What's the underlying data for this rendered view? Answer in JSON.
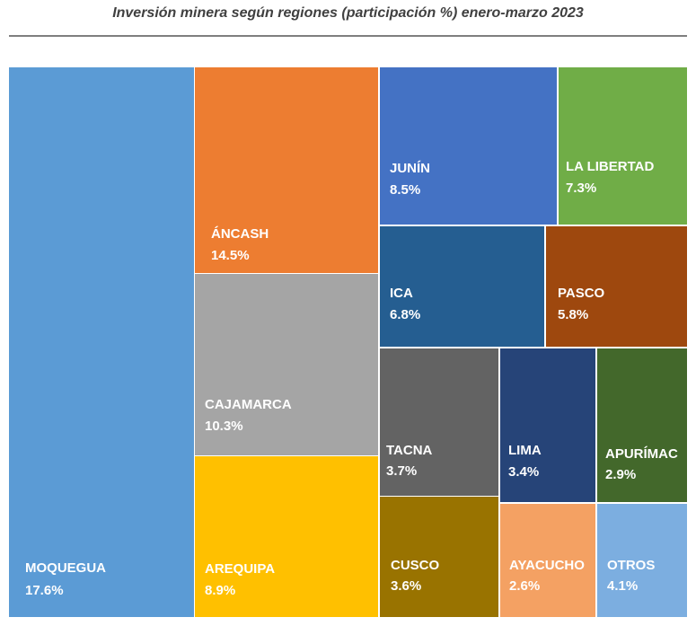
{
  "chart_data": {
    "type": "treemap",
    "title": "Inversión minera según regiones (participación %) enero-marzo 2023",
    "cells": [
      {
        "name": "MOQUEGUA",
        "label": "17.6%",
        "value": 17.6,
        "color": "#5b9bd5"
      },
      {
        "name": "ÁNCASH",
        "label": "14.5%",
        "value": 14.5,
        "color": "#ed7d31"
      },
      {
        "name": "CAJAMARCA",
        "label": "10.3%",
        "value": 10.3,
        "color": "#a5a5a5"
      },
      {
        "name": "AREQUIPA",
        "label": "8.9%",
        "value": 8.9,
        "color": "#ffc000"
      },
      {
        "name": "JUNÍN",
        "label": "8.5%",
        "value": 8.5,
        "color": "#4472c4"
      },
      {
        "name": "LA LIBERTAD",
        "label": "7.3%",
        "value": 7.3,
        "color": "#70ad47"
      },
      {
        "name": "ICA",
        "label": "6.8%",
        "value": 6.8,
        "color": "#255e91"
      },
      {
        "name": "PASCO",
        "label": "5.8%",
        "value": 5.8,
        "color": "#9e480e"
      },
      {
        "name": "TACNA",
        "label": "3.7%",
        "value": 3.7,
        "color": "#636363"
      },
      {
        "name": "LIMA",
        "label": "3.4%",
        "value": 3.4,
        "color": "#264478"
      },
      {
        "name": "APURÍMAC",
        "label": "2.9%",
        "value": 2.9,
        "color": "#43682b"
      },
      {
        "name": "CUSCO",
        "label": "3.6%",
        "value": 3.6,
        "color": "#997300"
      },
      {
        "name": "AYACUCHO",
        "label": "2.6%",
        "value": 2.6,
        "color": "#f4a163"
      },
      {
        "name": "OTROS",
        "label": "4.1%",
        "value": 4.1,
        "color": "#7caee0"
      }
    ]
  }
}
